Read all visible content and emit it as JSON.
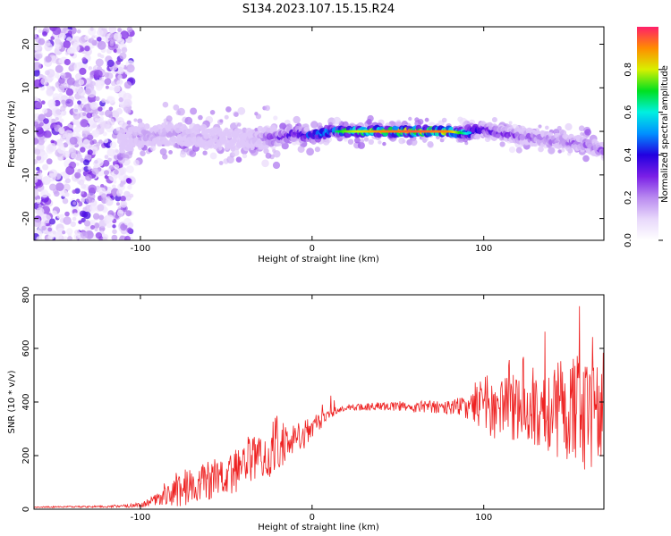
{
  "title": "S134.2023.107.15.15.R24",
  "colors": {
    "snr_line": "#ee2222",
    "axis": "#000000"
  },
  "chart_data": [
    {
      "type": "heatmap",
      "xlabel": "Height of straight line (km)",
      "ylabel": "Frequency (Hz)",
      "xlim": [
        -162,
        170
      ],
      "ylim": [
        -25,
        24
      ],
      "x_ticks": [
        -100,
        0,
        100
      ],
      "y_ticks": [
        -20,
        -10,
        0,
        10,
        20
      ],
      "colorbar": {
        "label": "Normalized spectral amplitude",
        "range": [
          0,
          1
        ],
        "ticks": [
          "0.0",
          "0.2",
          "0.4",
          "0.6",
          "0.8"
        ],
        "tick_values": [
          0,
          0.2,
          0.4,
          0.6,
          0.8
        ],
        "colormap": [
          "#ffffff",
          "#e8d8fb",
          "#b98af0",
          "#7a1fe6",
          "#2200e0",
          "#0090ff",
          "#00f0e0",
          "#00e020",
          "#d8f000",
          "#ff8c00",
          "#ff1f6a"
        ]
      },
      "ridge": {
        "x": [
          -110,
          -100,
          -80,
          -60,
          -40,
          -30,
          -20,
          -10,
          0,
          10,
          20,
          40,
          60,
          80,
          90,
          100,
          110,
          120,
          130,
          140,
          150,
          160,
          170
        ],
        "frequency": [
          -2,
          -1,
          -0.5,
          -1.5,
          -2,
          -1.5,
          -1.5,
          -0.5,
          -1,
          0,
          0,
          0,
          0,
          0,
          -0.5,
          0.5,
          -0.5,
          -1,
          -1.5,
          -2,
          -2.5,
          -3,
          -4.5
        ],
        "amplitude": [
          0.1,
          0.2,
          0.18,
          0.15,
          0.12,
          0.22,
          0.3,
          0.4,
          0.45,
          0.6,
          0.75,
          0.9,
          0.95,
          0.9,
          0.6,
          0.35,
          0.3,
          0.3,
          0.25,
          0.25,
          0.25,
          0.25,
          0.25
        ]
      },
      "grid": false
    },
    {
      "type": "line",
      "xlabel": "Height of straight line (km)",
      "ylabel": "SNR (10 * v/v)",
      "xlim": [
        -162,
        170
      ],
      "ylim": [
        0,
        800
      ],
      "x_ticks": [
        -100,
        0,
        100
      ],
      "y_ticks": [
        0,
        200,
        400,
        600,
        800
      ],
      "series": [
        {
          "x": [
            -162,
            -140,
            -120,
            -110,
            -100,
            -95,
            -90,
            -85,
            -80,
            -75,
            -70,
            -65,
            -60,
            -55,
            -50,
            -45,
            -40,
            -35,
            -30,
            -25,
            -20,
            -15,
            -10,
            -5,
            0,
            5,
            10,
            15,
            20,
            25,
            30,
            40,
            50,
            60,
            70,
            80,
            90,
            100,
            110,
            120,
            130,
            140,
            150,
            160,
            170
          ],
          "envelope": [
            8,
            10,
            12,
            18,
            22,
            40,
            70,
            110,
            150,
            200,
            160,
            190,
            220,
            180,
            200,
            230,
            260,
            280,
            250,
            330,
            380,
            310,
            330,
            310,
            330,
            390,
            430,
            410,
            370,
            380,
            380,
            390,
            400,
            380,
            390,
            380,
            400,
            550,
            560,
            560,
            650,
            720,
            750,
            780,
            620
          ],
          "mean": [
            8,
            9,
            10,
            12,
            16,
            25,
            40,
            55,
            65,
            75,
            90,
            100,
            110,
            120,
            125,
            140,
            155,
            170,
            190,
            210,
            240,
            250,
            270,
            280,
            300,
            330,
            355,
            370,
            380,
            380,
            380,
            385,
            385,
            380,
            385,
            380,
            380,
            385,
            385,
            380,
            385,
            380,
            370,
            360,
            360
          ],
          "spread": [
            2,
            3,
            4,
            6,
            8,
            15,
            30,
            45,
            60,
            70,
            60,
            70,
            80,
            70,
            75,
            80,
            90,
            95,
            80,
            100,
            120,
            80,
            60,
            60,
            40,
            30,
            20,
            15,
            12,
            12,
            14,
            16,
            18,
            20,
            25,
            30,
            40,
            110,
            130,
            130,
            150,
            180,
            200,
            220,
            180
          ]
        }
      ],
      "grid": false
    }
  ]
}
